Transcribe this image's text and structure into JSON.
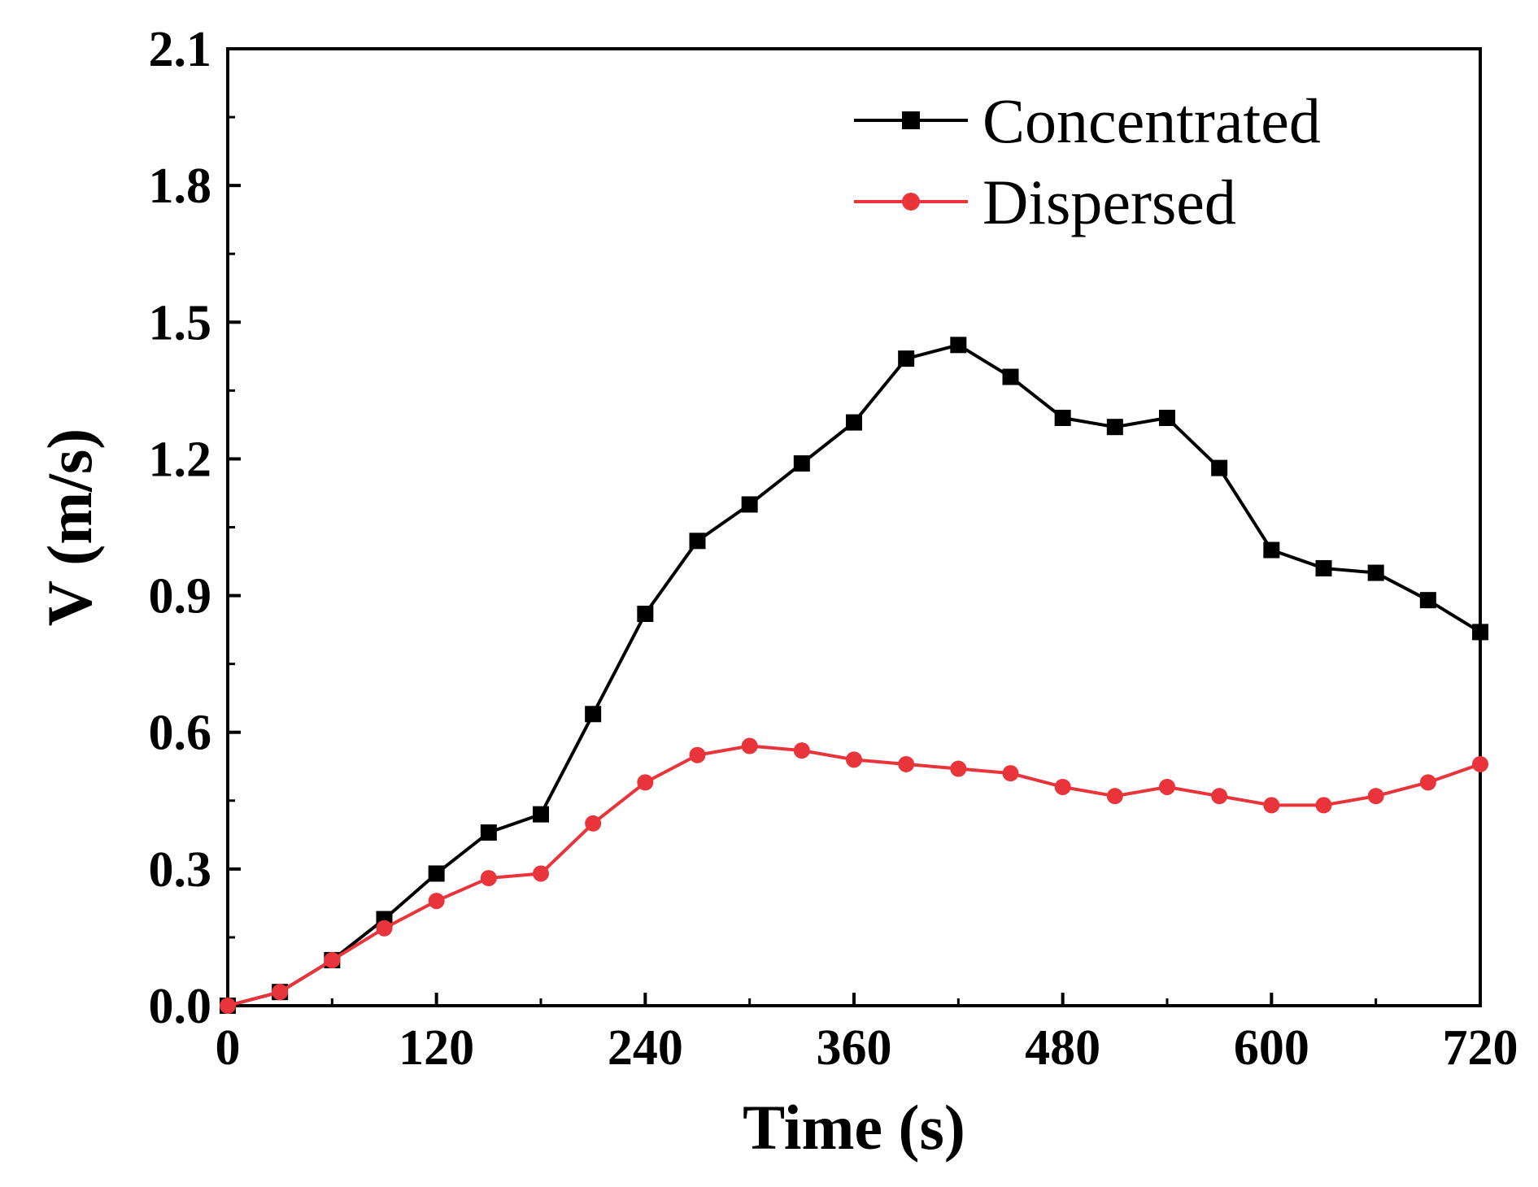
{
  "chart_data": {
    "type": "line",
    "title": "",
    "xlabel": "Time (s)",
    "ylabel": "V (m/s)",
    "xlim": [
      0,
      720
    ],
    "ylim": [
      0,
      2.1
    ],
    "xticks": [
      0,
      120,
      240,
      360,
      480,
      600,
      720
    ],
    "xtick_labels": [
      "0",
      "120",
      "240",
      "360",
      "480",
      "600",
      "720"
    ],
    "yticks": [
      0,
      0.3,
      0.6,
      0.9,
      1.2,
      1.5,
      1.8,
      2.1
    ],
    "ytick_labels": [
      "0.0",
      "0.3",
      "0.6",
      "0.9",
      "1.2",
      "1.5",
      "1.8",
      "2.1"
    ],
    "grid": false,
    "legend_position": "top-right",
    "x": [
      0,
      30,
      60,
      90,
      120,
      150,
      180,
      210,
      240,
      270,
      300,
      330,
      360,
      390,
      420,
      450,
      480,
      510,
      540,
      570,
      600,
      630,
      660,
      690,
      720
    ],
    "series": [
      {
        "name": "Concentrated",
        "color": "#000000",
        "marker": "square",
        "values": [
          0.0,
          0.03,
          0.1,
          0.19,
          0.29,
          0.38,
          0.42,
          0.64,
          0.86,
          1.02,
          1.1,
          1.19,
          1.28,
          1.42,
          1.45,
          1.38,
          1.29,
          1.27,
          1.29,
          1.18,
          1.0,
          0.96,
          0.95,
          0.89,
          0.82
        ]
      },
      {
        "name": "Dispersed",
        "color": "#e8343a",
        "marker": "circle",
        "values": [
          0.0,
          0.03,
          0.1,
          0.17,
          0.23,
          0.28,
          0.29,
          0.4,
          0.49,
          0.55,
          0.57,
          0.56,
          0.54,
          0.53,
          0.52,
          0.51,
          0.48,
          0.46,
          0.48,
          0.46,
          0.44,
          0.44,
          0.46,
          0.49,
          0.53
        ]
      }
    ]
  }
}
